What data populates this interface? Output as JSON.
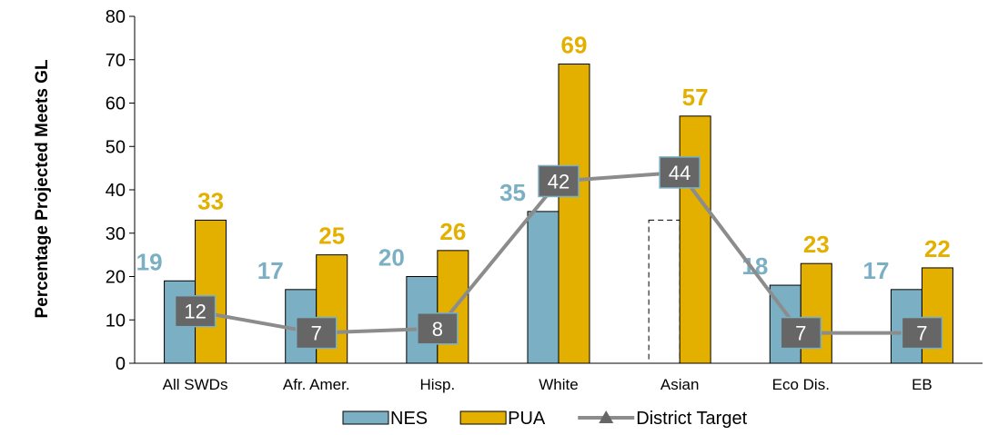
{
  "chart_data": {
    "type": "bar",
    "ylabel": "Percentage Projected Meets GL",
    "xlabel": "",
    "ylim": [
      0,
      80
    ],
    "ytick_step": 10,
    "grid": false,
    "legend_position": "bottom",
    "categories": [
      "All SWDs",
      "Afr. Amer.",
      "Hisp.",
      "White",
      "Asian",
      "Eco Dis.",
      "EB"
    ],
    "series": [
      {
        "name": "NES",
        "kind": "bar",
        "color": "#7BAFC4",
        "label_color": "#7BAFC4",
        "values": [
          19,
          17,
          20,
          35,
          null,
          18,
          17
        ]
      },
      {
        "name": "PUA",
        "kind": "bar",
        "color": "#E3B000",
        "label_color": "#E3B000",
        "values": [
          33,
          25,
          26,
          69,
          57,
          23,
          22
        ]
      },
      {
        "name": "District Target",
        "kind": "line",
        "color": "#8C8C8C",
        "marker_color": "#666666",
        "values": [
          12,
          7,
          8,
          42,
          44,
          7,
          7
        ]
      }
    ],
    "placeholder_bar": {
      "category": "Asian",
      "series": "NES",
      "value": 33,
      "style": "dashed-outline"
    }
  }
}
